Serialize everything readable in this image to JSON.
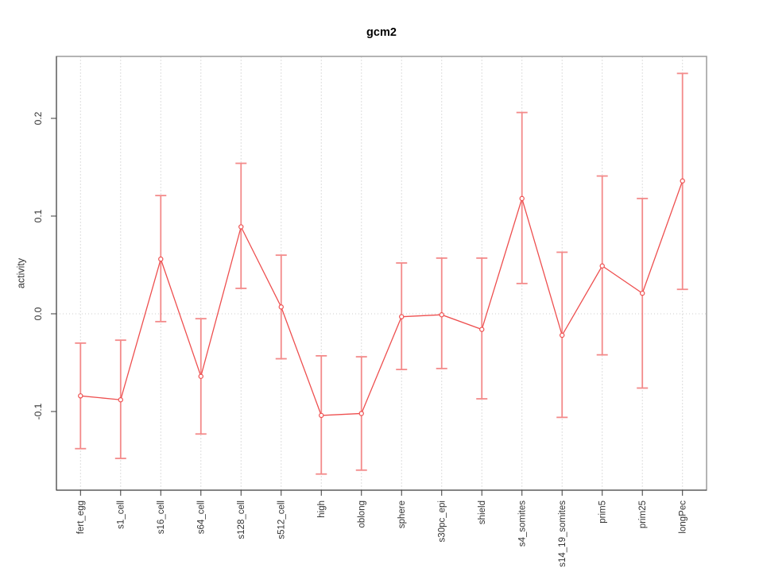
{
  "chart_data": {
    "type": "line",
    "title": "gcm2",
    "ylabel": "activity",
    "xlabel": "",
    "legend_position": "none",
    "grid": {
      "vertical": "dashed line at every category",
      "horizontal": "dotted line at y=0 only"
    },
    "categories": [
      "fert_egg",
      "s1_cell",
      "s16_cell",
      "s64_cell",
      "s128_cell",
      "s512_cell",
      "high",
      "oblong",
      "sphere",
      "s30pc_epi",
      "shield",
      "s4_somites",
      "s14_19_somites",
      "prim5",
      "prim25",
      "longPec"
    ],
    "series": [
      {
        "name": "activity",
        "marker": "open-circle",
        "values": [
          -0.084,
          -0.088,
          0.056,
          -0.064,
          0.089,
          0.007,
          -0.104,
          -0.102,
          -0.003,
          -0.001,
          -0.016,
          0.118,
          -0.022,
          0.049,
          0.021,
          0.136
        ],
        "error_upper": [
          -0.03,
          -0.027,
          0.121,
          -0.005,
          0.154,
          0.06,
          -0.043,
          -0.044,
          0.052,
          0.057,
          0.057,
          0.206,
          0.063,
          0.141,
          0.118,
          0.246
        ],
        "error_lower": [
          -0.138,
          -0.148,
          -0.008,
          -0.123,
          0.026,
          -0.046,
          -0.164,
          -0.16,
          -0.057,
          -0.056,
          -0.087,
          0.031,
          -0.106,
          -0.042,
          -0.076,
          0.025
        ]
      }
    ],
    "yticks": [
      -0.1,
      0.0,
      0.1,
      0.2
    ],
    "ytick_labels": [
      "-0.1",
      "0.0",
      "0.1",
      "0.2"
    ],
    "ylim": [
      -0.1805,
      0.2634
    ],
    "xlim": [
      0.4,
      16.6
    ],
    "colors": {
      "series": "#ee4f4f",
      "error_bar": "#f38a8a",
      "grid_vertical": "#dddddd",
      "zero_line": "#cccccc",
      "axis": "#3a3a3a",
      "box": "#9c9c9c",
      "tick_text": "#333333",
      "title_text": "#000000"
    }
  }
}
